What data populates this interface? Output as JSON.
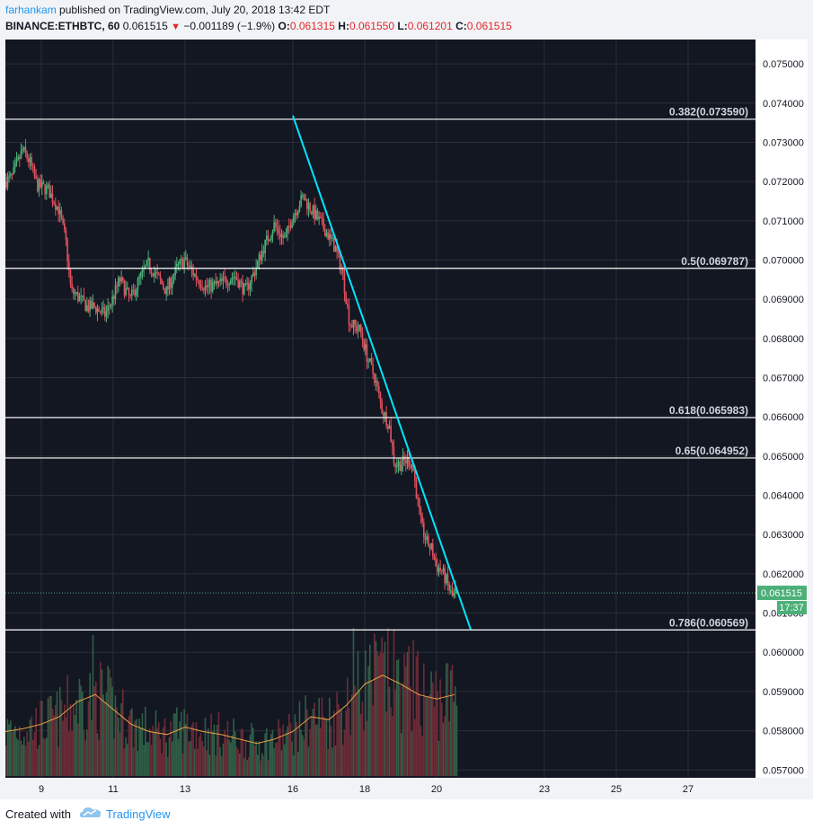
{
  "header": {
    "author": "farhankam",
    "published_text": "published on TradingView.com, July 20, 2018 13:42 EDT",
    "symbol": "BINANCE:ETHBTC, 60",
    "price": "0.061515",
    "change_arrow": "▼",
    "change": "−0.001189 (−1.9%)",
    "o_label": "O:",
    "o_value": "0.061315",
    "h_label": "H:",
    "h_value": "0.061550",
    "l_label": "L:",
    "l_value": "0.061201",
    "c_label": "C:",
    "c_value": "0.061515"
  },
  "footer": {
    "created_with": "Created with",
    "brand": "TradingView"
  },
  "colors": {
    "background": "#131722",
    "grid": "#2a2e39",
    "up": "#4caf78",
    "down": "#e0515f",
    "trendline": "#00e5ff",
    "fib": "#ffffff",
    "volume_ma": "#f0a040",
    "price_line": "#4caf78"
  },
  "chart_data": {
    "type": "candlestick",
    "symbol": "ETHBTC",
    "exchange": "BINANCE",
    "interval": "60",
    "y_axis": {
      "ticks": [
        "0.075000",
        "0.074000",
        "0.073000",
        "0.072000",
        "0.071000",
        "0.070000",
        "0.069000",
        "0.068000",
        "0.067000",
        "0.066000",
        "0.065000",
        "0.064000",
        "0.063000",
        "0.062000",
        "0.061000",
        "0.060000",
        "0.059000",
        "0.058000",
        "0.057000"
      ],
      "range": [
        0.0568,
        0.0753
      ]
    },
    "x_axis": {
      "ticks": [
        {
          "label": "9",
          "day": 9
        },
        {
          "label": "11",
          "day": 11
        },
        {
          "label": "13",
          "day": 13
        },
        {
          "label": "16",
          "day": 16
        },
        {
          "label": "18",
          "day": 18
        },
        {
          "label": "20",
          "day": 20
        },
        {
          "label": "23",
          "day": 23
        },
        {
          "label": "25",
          "day": 25
        },
        {
          "label": "27",
          "day": 27
        }
      ]
    },
    "fib_levels": [
      {
        "label": "0.382(0.073590)",
        "value": 0.07359
      },
      {
        "label": "0.5(0.069787)",
        "value": 0.069787
      },
      {
        "label": "0.618(0.065983)",
        "value": 0.065983
      },
      {
        "label": "0.65(0.064952)",
        "value": 0.064952
      },
      {
        "label": "0.786(0.060569)",
        "value": 0.060569
      }
    ],
    "trendline": {
      "from": [
        16.0,
        0.07368
      ],
      "to": [
        20.95,
        0.06058
      ]
    },
    "last_price": {
      "label": "0.061515",
      "value": 0.061515
    },
    "countdown": "17:37",
    "price_path": [
      [
        8.0,
        0.072
      ],
      [
        8.2,
        0.0721
      ],
      [
        8.5,
        0.0728
      ],
      [
        8.7,
        0.0725
      ],
      [
        8.9,
        0.0719
      ],
      [
        9.2,
        0.0718
      ],
      [
        9.5,
        0.0713
      ],
      [
        9.7,
        0.0705
      ],
      [
        9.85,
        0.0692
      ],
      [
        10.0,
        0.0691
      ],
      [
        10.3,
        0.0688
      ],
      [
        10.5,
        0.0688
      ],
      [
        10.8,
        0.0686
      ],
      [
        11.0,
        0.069
      ],
      [
        11.2,
        0.0695
      ],
      [
        11.5,
        0.069
      ],
      [
        11.8,
        0.0696
      ],
      [
        12.0,
        0.0699
      ],
      [
        12.3,
        0.0695
      ],
      [
        12.5,
        0.0692
      ],
      [
        12.8,
        0.0698
      ],
      [
        13.0,
        0.07
      ],
      [
        13.3,
        0.0696
      ],
      [
        13.6,
        0.0693
      ],
      [
        14.0,
        0.0694
      ],
      [
        14.4,
        0.0696
      ],
      [
        14.7,
        0.0692
      ],
      [
        14.95,
        0.0697
      ],
      [
        15.2,
        0.0703
      ],
      [
        15.5,
        0.0709
      ],
      [
        15.8,
        0.0705
      ],
      [
        16.0,
        0.0711
      ],
      [
        16.3,
        0.0716
      ],
      [
        16.6,
        0.0712
      ],
      [
        16.9,
        0.0708
      ],
      [
        17.2,
        0.0703
      ],
      [
        17.4,
        0.0697
      ],
      [
        17.6,
        0.0684
      ],
      [
        17.9,
        0.0682
      ],
      [
        18.1,
        0.0675
      ],
      [
        18.3,
        0.067
      ],
      [
        18.5,
        0.0662
      ],
      [
        18.7,
        0.0658
      ],
      [
        18.85,
        0.0648
      ],
      [
        19.0,
        0.0648
      ],
      [
        19.2,
        0.0649
      ],
      [
        19.35,
        0.0648
      ],
      [
        19.5,
        0.0638
      ],
      [
        19.6,
        0.0632
      ],
      [
        19.75,
        0.0628
      ],
      [
        19.9,
        0.0626
      ],
      [
        20.0,
        0.0622
      ],
      [
        20.15,
        0.0621
      ],
      [
        20.3,
        0.0618
      ],
      [
        20.45,
        0.0614
      ],
      [
        20.55,
        0.061515
      ]
    ],
    "volume": {
      "axis_range_note": "volume bars on lower pane, no axis",
      "ma_path": [
        [
          8.0,
          0.3
        ],
        [
          8.5,
          0.32
        ],
        [
          9.0,
          0.35
        ],
        [
          9.5,
          0.4
        ],
        [
          10.0,
          0.5
        ],
        [
          10.5,
          0.55
        ],
        [
          11.0,
          0.45
        ],
        [
          11.5,
          0.35
        ],
        [
          12.0,
          0.3
        ],
        [
          12.5,
          0.28
        ],
        [
          13.0,
          0.33
        ],
        [
          13.5,
          0.3
        ],
        [
          14.0,
          0.28
        ],
        [
          14.5,
          0.25
        ],
        [
          15.0,
          0.22
        ],
        [
          15.5,
          0.25
        ],
        [
          16.0,
          0.3
        ],
        [
          16.5,
          0.4
        ],
        [
          17.0,
          0.38
        ],
        [
          17.5,
          0.48
        ],
        [
          18.0,
          0.62
        ],
        [
          18.5,
          0.68
        ],
        [
          19.0,
          0.62
        ],
        [
          19.5,
          0.55
        ],
        [
          20.0,
          0.52
        ],
        [
          20.5,
          0.55
        ]
      ],
      "extremes": [
        [
          10.4,
          0.95
        ],
        [
          17.65,
          1.0
        ],
        [
          19.35,
          0.92
        ],
        [
          20.6,
          0.92
        ]
      ]
    }
  }
}
